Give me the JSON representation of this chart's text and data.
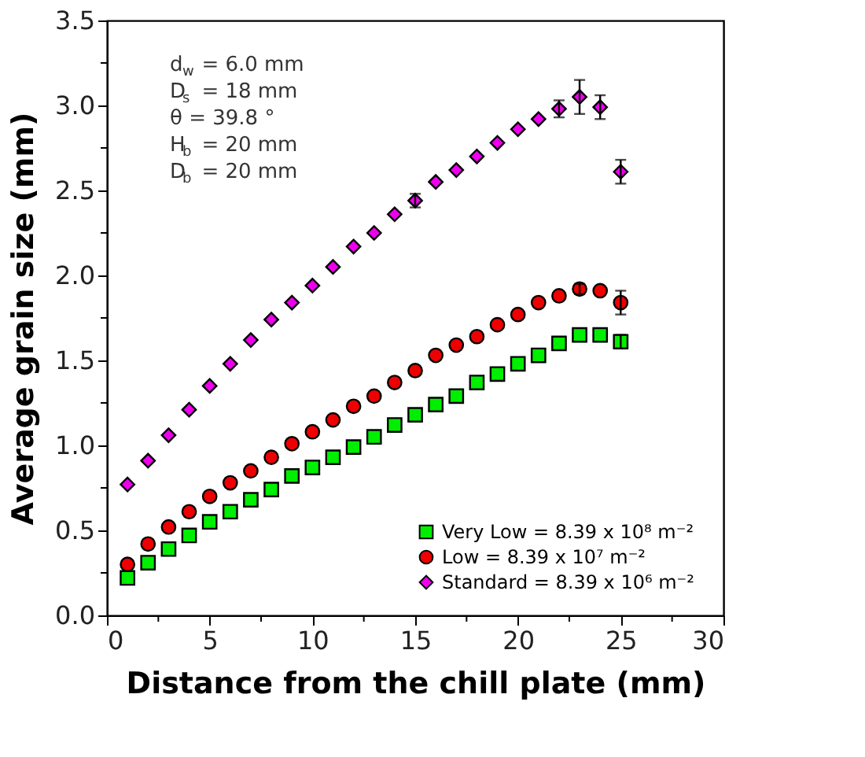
{
  "chart_data": {
    "type": "scatter",
    "xlabel": "Distance from the chill plate (mm)",
    "ylabel": "Average grain size (mm)",
    "x": [
      1,
      2,
      3,
      4,
      5,
      6,
      7,
      8,
      9,
      10,
      11,
      12,
      13,
      14,
      15,
      16,
      17,
      18,
      19,
      20,
      21,
      22,
      23,
      24,
      25
    ],
    "series": [
      {
        "name": "Very Low = 8.39 x 10⁸ m⁻²",
        "color": "#00ee00",
        "marker": "square",
        "values": [
          0.22,
          0.31,
          0.39,
          0.47,
          0.55,
          0.61,
          0.68,
          0.74,
          0.82,
          0.87,
          0.93,
          0.99,
          1.05,
          1.12,
          1.18,
          1.24,
          1.29,
          1.37,
          1.42,
          1.48,
          1.53,
          1.6,
          1.65,
          1.65,
          1.61
        ],
        "errors": [
          null,
          null,
          null,
          null,
          null,
          null,
          null,
          null,
          null,
          null,
          null,
          null,
          null,
          null,
          null,
          null,
          null,
          null,
          null,
          null,
          null,
          null,
          null,
          null,
          0.04
        ]
      },
      {
        "name": "Low = 8.39 x 10⁷ m⁻²",
        "color": "#ee0000",
        "marker": "circle",
        "values": [
          0.3,
          0.42,
          0.52,
          0.61,
          0.7,
          0.78,
          0.85,
          0.93,
          1.01,
          1.08,
          1.15,
          1.23,
          1.29,
          1.37,
          1.44,
          1.53,
          1.59,
          1.64,
          1.71,
          1.77,
          1.84,
          1.88,
          1.92,
          1.91,
          1.84
        ],
        "errors": [
          null,
          null,
          null,
          null,
          null,
          null,
          null,
          null,
          null,
          null,
          null,
          null,
          null,
          null,
          null,
          null,
          null,
          null,
          null,
          null,
          null,
          null,
          0.03,
          null,
          0.07
        ]
      },
      {
        "name": "Standard  = 8.39 x 10⁶ m⁻²",
        "color": "#ee00ee",
        "marker": "diamond",
        "values": [
          0.77,
          0.91,
          1.06,
          1.21,
          1.35,
          1.48,
          1.62,
          1.74,
          1.84,
          1.94,
          2.05,
          2.17,
          2.25,
          2.36,
          2.44,
          2.55,
          2.62,
          2.7,
          2.78,
          2.86,
          2.92,
          2.98,
          3.05,
          2.99,
          2.61
        ],
        "errors": [
          null,
          null,
          null,
          null,
          null,
          null,
          null,
          null,
          null,
          null,
          null,
          null,
          null,
          null,
          0.04,
          null,
          null,
          null,
          null,
          null,
          null,
          0.05,
          0.1,
          0.07,
          0.07
        ]
      }
    ],
    "xlim": [
      0,
      30
    ],
    "ylim": [
      0,
      3.5
    ],
    "xticks": [
      0,
      {
        "value": 2.5,
        "label": null
      },
      5,
      {
        "value": 7.5,
        "label": null
      },
      10,
      {
        "value": 12.5,
        "label": null
      },
      15,
      {
        "value": 17.5,
        "label": null
      },
      20,
      {
        "value": 22.5,
        "label": null
      },
      25,
      {
        "value": 27.5,
        "label": null
      },
      30
    ],
    "yticks": [
      {
        "value": 0,
        "label": "0.0"
      },
      {
        "value": 0.25,
        "label": null
      },
      {
        "value": 0.5,
        "label": "0.5"
      },
      {
        "value": 0.75,
        "label": null
      },
      {
        "value": 1,
        "label": "1.0"
      },
      {
        "value": 1.25,
        "label": null
      },
      {
        "value": 1.5,
        "label": "1.5"
      },
      {
        "value": 1.75,
        "label": null
      },
      {
        "value": 2,
        "label": "2.0"
      },
      {
        "value": 2.25,
        "label": null
      },
      {
        "value": 2.5,
        "label": "2.5"
      },
      {
        "value": 2.75,
        "label": null
      },
      {
        "value": 3,
        "label": "3.0"
      },
      {
        "value": 3.25,
        "label": null
      },
      {
        "value": 3.5,
        "label": "3.5"
      }
    ],
    "annotations": [
      "d$_{w}$ = 6.0 mm",
      "D$_{s}$ = 18 mm",
      "θ = 39.8 °",
      "H$_{b}$ = 20 mm",
      "D$_{b}$ = 20 mm"
    ],
    "legend": "bottom right",
    "grid": false
  }
}
